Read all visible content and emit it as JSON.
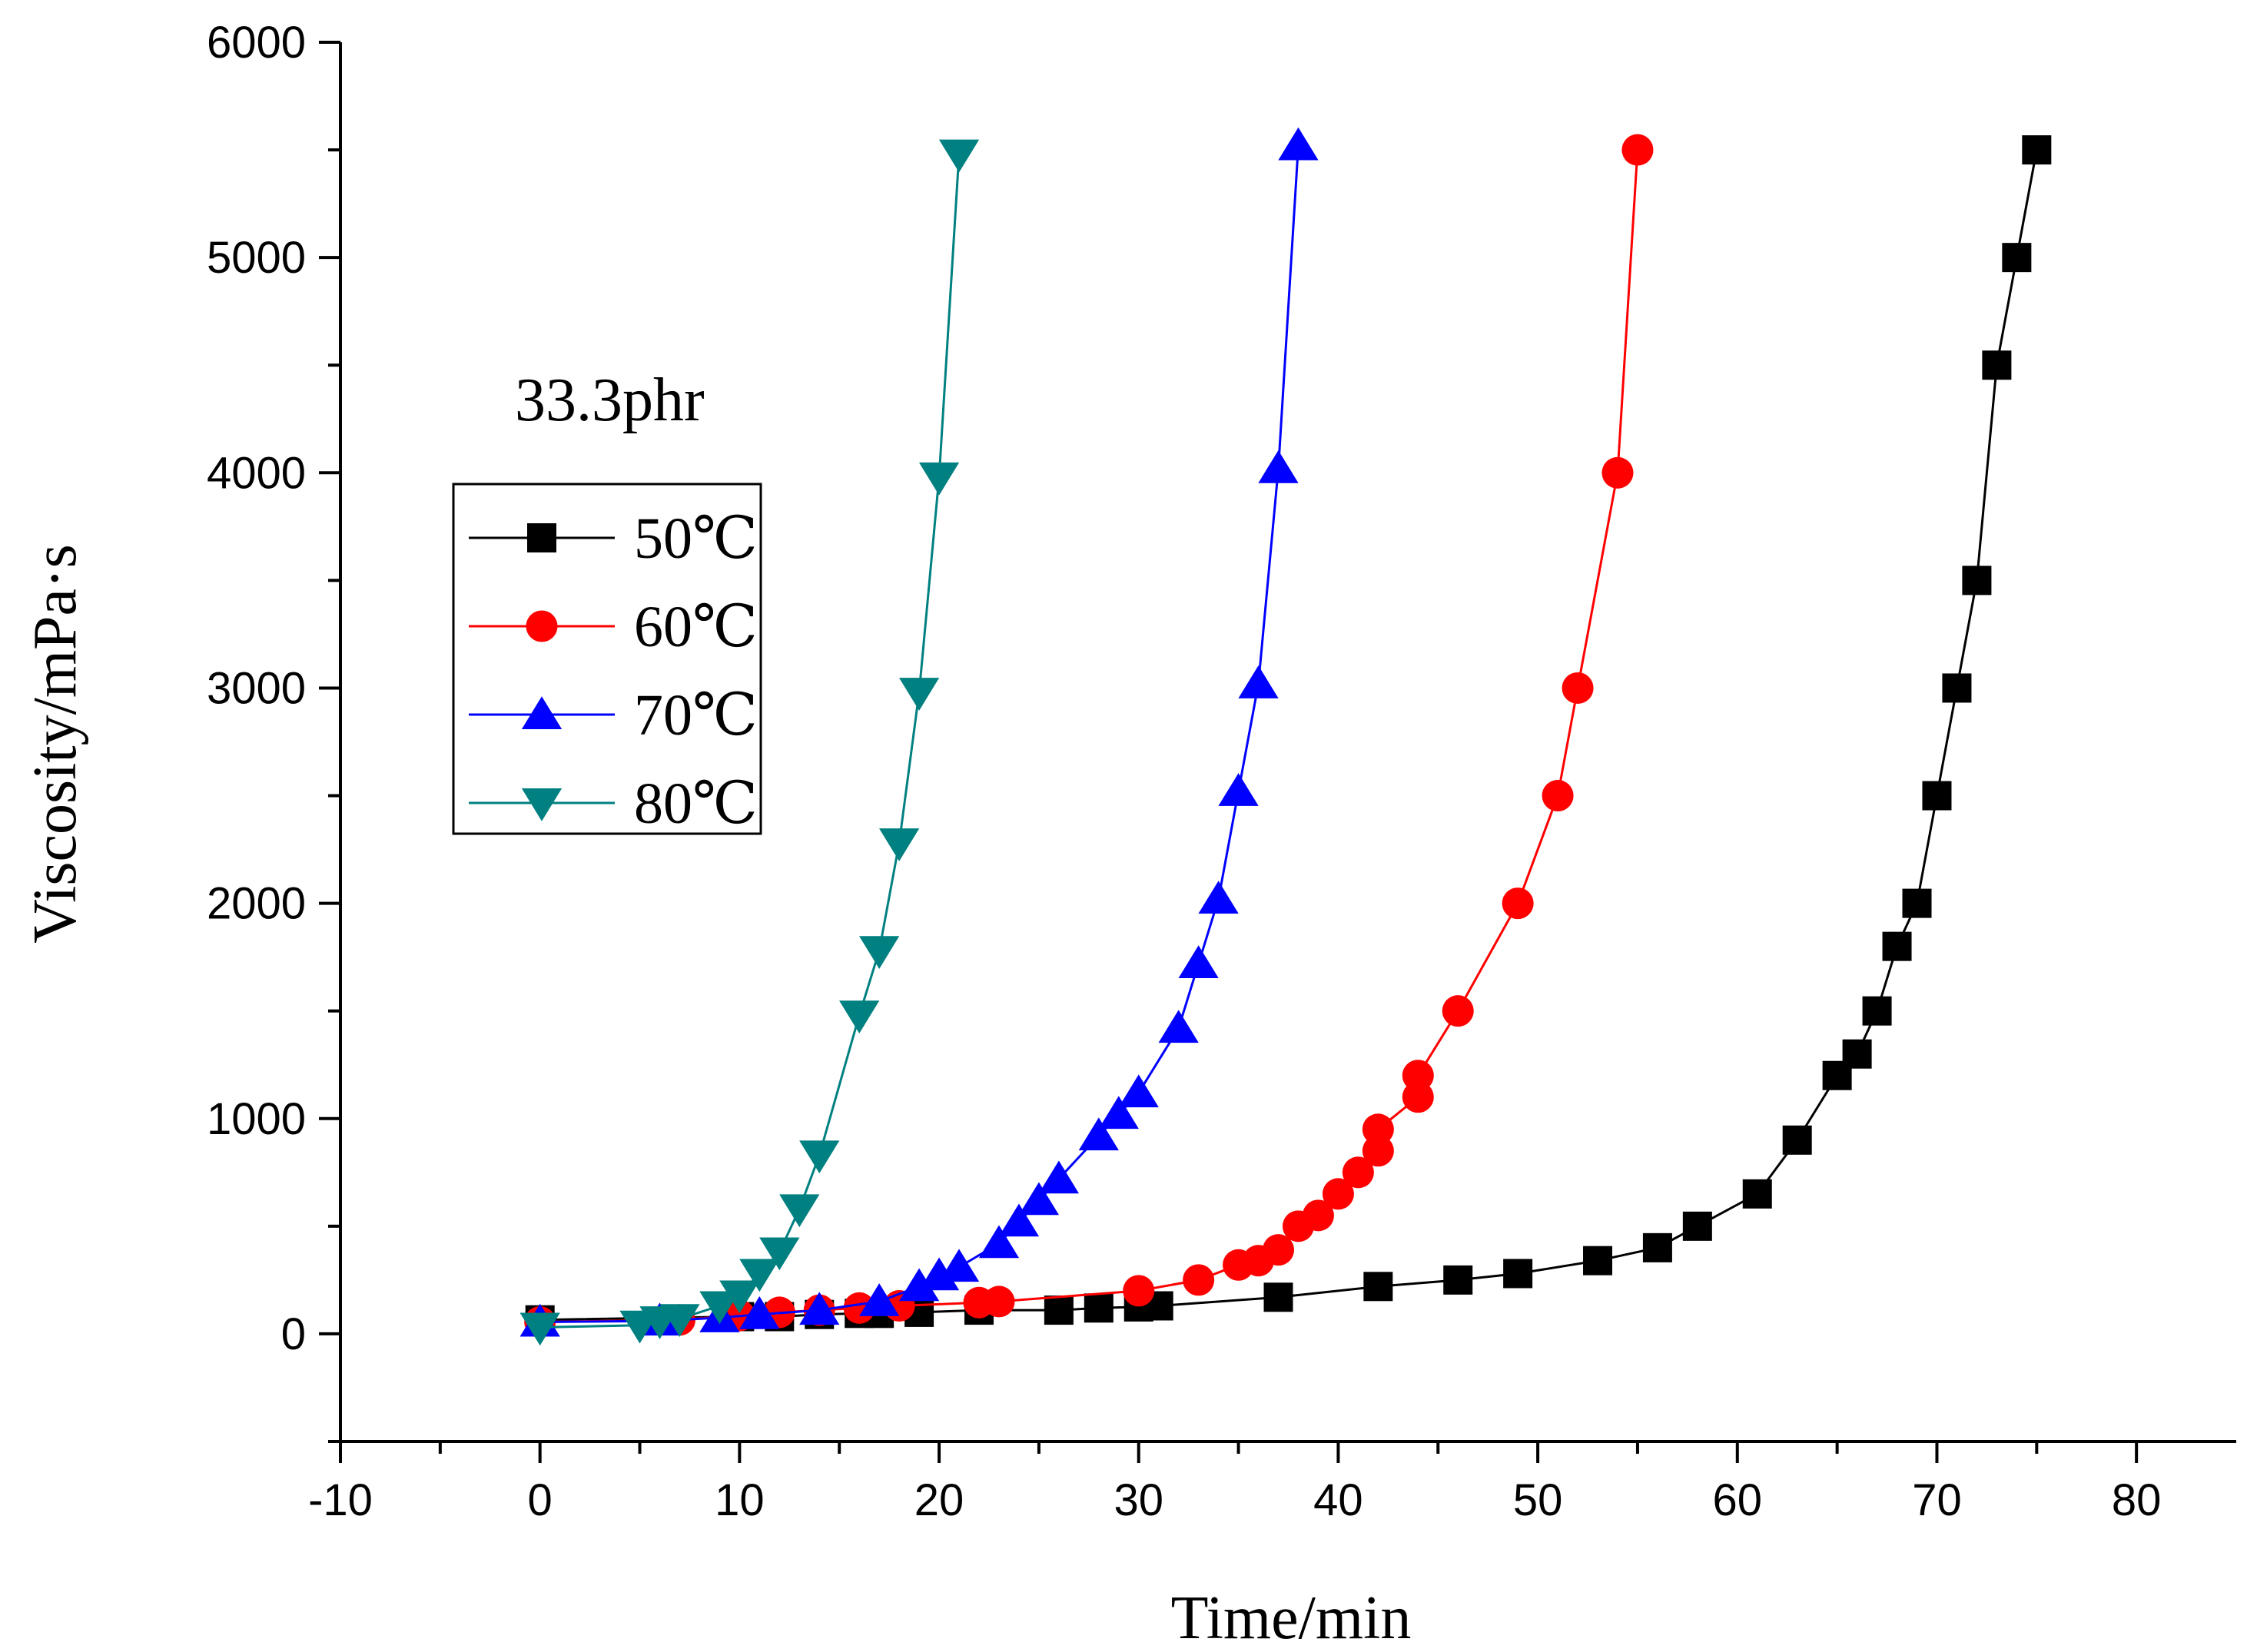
{
  "chart_data": {
    "type": "line",
    "title": "",
    "annotation": "33.3phr",
    "xlabel": "Time/min",
    "ylabel": "Viscosity/mPa·s",
    "xlim": [
      -10,
      85
    ],
    "ylim": [
      -500,
      6000
    ],
    "xticks": [
      -10,
      0,
      10,
      20,
      30,
      40,
      50,
      60,
      70,
      80
    ],
    "yticks": [
      0,
      1000,
      2000,
      3000,
      4000,
      5000,
      6000
    ],
    "grid": false,
    "legend_position": "left",
    "series": [
      {
        "name": "50℃",
        "color": "#000000",
        "marker": "square",
        "x": [
          0,
          10,
          12,
          14,
          16,
          17,
          19,
          22,
          26,
          28,
          30,
          31,
          37,
          42,
          46,
          49,
          53,
          56,
          58,
          61,
          63,
          65,
          66,
          67,
          68,
          69,
          70,
          71,
          72,
          73,
          74,
          75
        ],
        "y": [
          65,
          80,
          80,
          90,
          95,
          95,
          100,
          110,
          110,
          120,
          125,
          130,
          170,
          220,
          250,
          280,
          340,
          400,
          500,
          650,
          900,
          1200,
          1300,
          1500,
          1800,
          2000,
          2500,
          3000,
          3500,
          4500,
          5000,
          5500
        ]
      },
      {
        "name": "60℃",
        "color": "#ff0000",
        "marker": "circle",
        "x": [
          0,
          7,
          10,
          12,
          14,
          16,
          18,
          22,
          23,
          30,
          33,
          35,
          36,
          37,
          38,
          39,
          40,
          41,
          42,
          42,
          44,
          44,
          46,
          49,
          51,
          52,
          54,
          55
        ],
        "y": [
          55,
          65,
          85,
          100,
          110,
          120,
          130,
          145,
          150,
          200,
          250,
          320,
          340,
          390,
          500,
          550,
          650,
          750,
          850,
          950,
          1100,
          1200,
          1500,
          2000,
          2500,
          3000,
          4000,
          5500
        ]
      },
      {
        "name": "70℃",
        "color": "#0000ff",
        "marker": "triangle-up",
        "x": [
          0,
          6,
          9,
          11,
          14,
          17,
          19,
          20,
          21,
          23,
          24,
          25,
          26,
          28,
          29,
          30,
          32,
          33,
          34,
          35,
          36,
          37,
          38
        ],
        "y": [
          55,
          60,
          75,
          90,
          110,
          150,
          220,
          270,
          310,
          420,
          520,
          620,
          720,
          920,
          1020,
          1120,
          1420,
          1720,
          2020,
          2520,
          3020,
          4020,
          5520
        ]
      },
      {
        "name": "80℃",
        "color": "#008080",
        "marker": "triangle-down",
        "x": [
          0,
          5,
          6,
          7,
          9,
          10,
          11,
          12,
          13,
          14,
          16,
          17,
          18,
          19,
          20,
          21
        ],
        "y": [
          30,
          40,
          60,
          70,
          130,
          180,
          280,
          380,
          580,
          830,
          1480,
          1780,
          2280,
          2980,
          3980,
          5480
        ]
      }
    ]
  }
}
